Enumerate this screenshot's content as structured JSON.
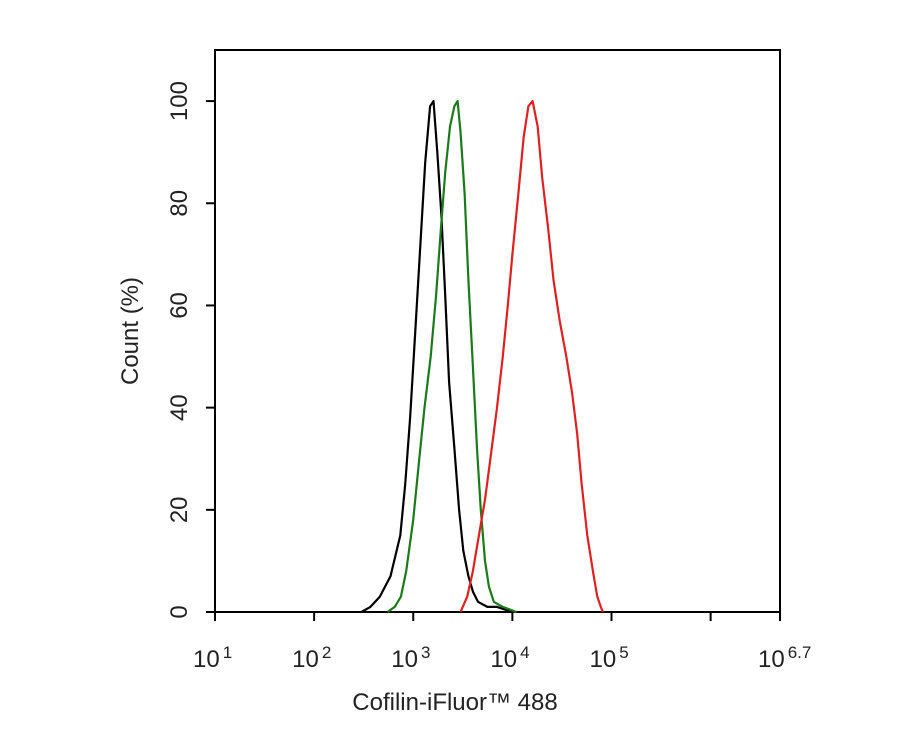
{
  "chart_data": {
    "type": "line",
    "x_label": "Cofilin-iFluor™ 488",
    "y_label": "Count  (%)",
    "xscale": "log",
    "xlim": [
      10,
      5011872
    ],
    "ylim": [
      0,
      110
    ],
    "xticks": [
      {
        "value": 10,
        "label": "10",
        "power": "1"
      },
      {
        "value": 100,
        "label": "10",
        "power": "2"
      },
      {
        "value": 1000,
        "label": "10",
        "power": "3"
      },
      {
        "value": 10000,
        "label": "10",
        "power": "4"
      },
      {
        "value": 100000,
        "label": "10",
        "power": "5"
      },
      {
        "value": 1000000,
        "label": ""
      },
      {
        "value": 5011872,
        "label": "10",
        "power": "6.7"
      }
    ],
    "yticks": [
      0,
      20,
      40,
      60,
      80,
      100
    ],
    "series": [
      {
        "color": "#000000",
        "x": [
          300,
          370,
          460,
          590,
          740,
          830,
          930,
          1050,
          1180,
          1320,
          1480,
          1600,
          1750,
          1920,
          2100,
          2300,
          2600,
          2900,
          3200,
          3600,
          4000,
          4500,
          5600,
          7000,
          10000
        ],
        "values": [
          0,
          1,
          3,
          7,
          15,
          25,
          38,
          55,
          72,
          88,
          99,
          100,
          90,
          78,
          62,
          45,
          32,
          20,
          12,
          7,
          4,
          2,
          1,
          1,
          0
        ]
      },
      {
        "color": "#1a7a1a",
        "x": [
          550,
          650,
          750,
          850,
          1000,
          1150,
          1300,
          1500,
          1700,
          1900,
          2100,
          2350,
          2600,
          2800,
          3000,
          3300,
          3600,
          4000,
          4400,
          4800,
          5300,
          5800,
          6500,
          8000,
          11000
        ],
        "values": [
          0,
          1,
          3,
          8,
          18,
          30,
          40,
          50,
          62,
          75,
          86,
          95,
          99,
          100,
          94,
          82,
          65,
          48,
          32,
          20,
          10,
          5,
          2,
          1,
          0
        ]
      },
      {
        "color": "#e02020",
        "x": [
          3000,
          3500,
          4000,
          4600,
          5300,
          6000,
          7000,
          8000,
          9000,
          10000,
          11500,
          13000,
          14500,
          16000,
          18000,
          20000,
          23000,
          26000,
          30000,
          35000,
          40000,
          45000,
          50000,
          57000,
          65000,
          72000,
          78000,
          82000
        ],
        "values": [
          0,
          3,
          8,
          15,
          22,
          30,
          40,
          50,
          60,
          70,
          82,
          93,
          99,
          100,
          95,
          85,
          75,
          65,
          57,
          50,
          43,
          35,
          25,
          15,
          8,
          3,
          1,
          0
        ]
      }
    ]
  }
}
